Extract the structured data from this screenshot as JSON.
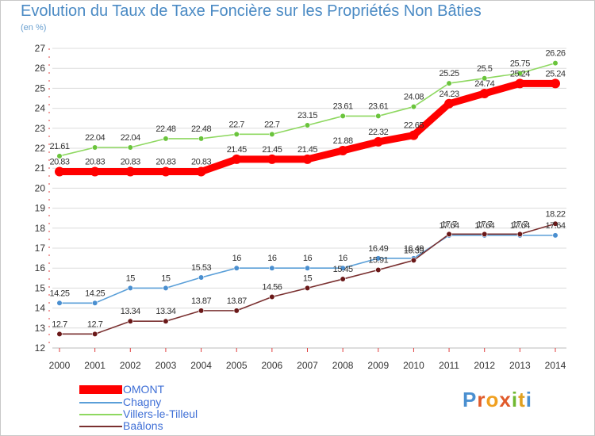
{
  "title": "Evolution du Taux de Taxe Foncière sur les Propriétés Non Bâties",
  "unit_label": "(en %)",
  "logo": "Proxiti",
  "colors": {
    "title": "#4a8ac4",
    "axis_text": "#333333",
    "grid": "#dcdcdc",
    "axis_ticks": "#e04040",
    "legend_text": "#3f6fd6"
  },
  "legend": [
    {
      "name": "OMONT",
      "color": "#ff0000"
    },
    {
      "name": "Chagny",
      "color": "#5a9fd8"
    },
    {
      "name": "Villers-le-Tilleul",
      "color": "#8ed860"
    },
    {
      "name": "Baâlons",
      "color": "#7a3030"
    }
  ],
  "chart_data": {
    "type": "line",
    "title": "Evolution du Taux de Taxe Foncière sur les Propriétés Non Bâties",
    "ylabel": "(en %)",
    "xlabel": "",
    "x": [
      2000,
      2001,
      2002,
      2003,
      2004,
      2005,
      2006,
      2007,
      2008,
      2009,
      2010,
      2011,
      2012,
      2013,
      2014
    ],
    "ylim": [
      12,
      27
    ],
    "yticks": [
      12,
      13,
      14,
      15,
      16,
      17,
      18,
      19,
      20,
      21,
      22,
      23,
      24,
      25,
      26,
      27
    ],
    "grid": "horizontal",
    "legend_position": "bottom-left",
    "series": [
      {
        "name": "OMONT",
        "color": "#ff0000",
        "style": "thick",
        "values": [
          20.83,
          20.83,
          20.83,
          20.83,
          20.83,
          21.45,
          21.45,
          21.45,
          21.88,
          22.32,
          22.65,
          24.23,
          24.74,
          25.24,
          25.24
        ],
        "labels": [
          "20.83",
          "20.83",
          "20.83",
          "20.83",
          "20.83",
          "21.45",
          "21.45",
          "21.45",
          "21.88",
          "22.32",
          "22.65",
          "24.23",
          "24.74",
          "25.24",
          "25.24"
        ]
      },
      {
        "name": "Chagny",
        "color": "#5a9fd8",
        "marker": "#4a8fd0",
        "style": "thin",
        "values": [
          14.25,
          14.25,
          15,
          15,
          15.53,
          16,
          16,
          16,
          16,
          16.49,
          16.49,
          17.64,
          17.64,
          17.64,
          17.64
        ],
        "labels": [
          "14.25",
          "14.25",
          "15",
          "15",
          "15.53",
          "16",
          "16",
          "16",
          "16",
          "16.49",
          "16.49",
          "17.64",
          "17.64",
          "17.64",
          "17.64"
        ]
      },
      {
        "name": "Villers-le-Tilleul",
        "color": "#8ed860",
        "marker": "#6ac43c",
        "style": "thin",
        "values": [
          21.61,
          22.04,
          22.04,
          22.48,
          22.48,
          22.7,
          22.7,
          23.15,
          23.61,
          23.61,
          24.08,
          25.25,
          25.5,
          25.75,
          26.26
        ],
        "labels": [
          "21.61",
          "22.04",
          "22.04",
          "22.48",
          "22.48",
          "22.7",
          "22.7",
          "23.15",
          "23.61",
          "23.61",
          "24.08",
          "25.25",
          "25.5",
          "25.75",
          "26.26"
        ]
      },
      {
        "name": "Baâlons",
        "color": "#7a3030",
        "marker": "#6a1818",
        "style": "thin",
        "values": [
          12.7,
          12.7,
          13.34,
          13.34,
          13.87,
          13.87,
          14.56,
          15,
          15.45,
          15.91,
          16.39,
          17.7,
          17.7,
          17.7,
          18.22
        ],
        "labels": [
          "12.7",
          "12.7",
          "13.34",
          "13.34",
          "13.87",
          "13.87",
          "14.56",
          "15",
          "15.45",
          "15.91",
          "16.39",
          "17.7",
          "17.7",
          "17.7",
          "18.22"
        ]
      }
    ]
  }
}
